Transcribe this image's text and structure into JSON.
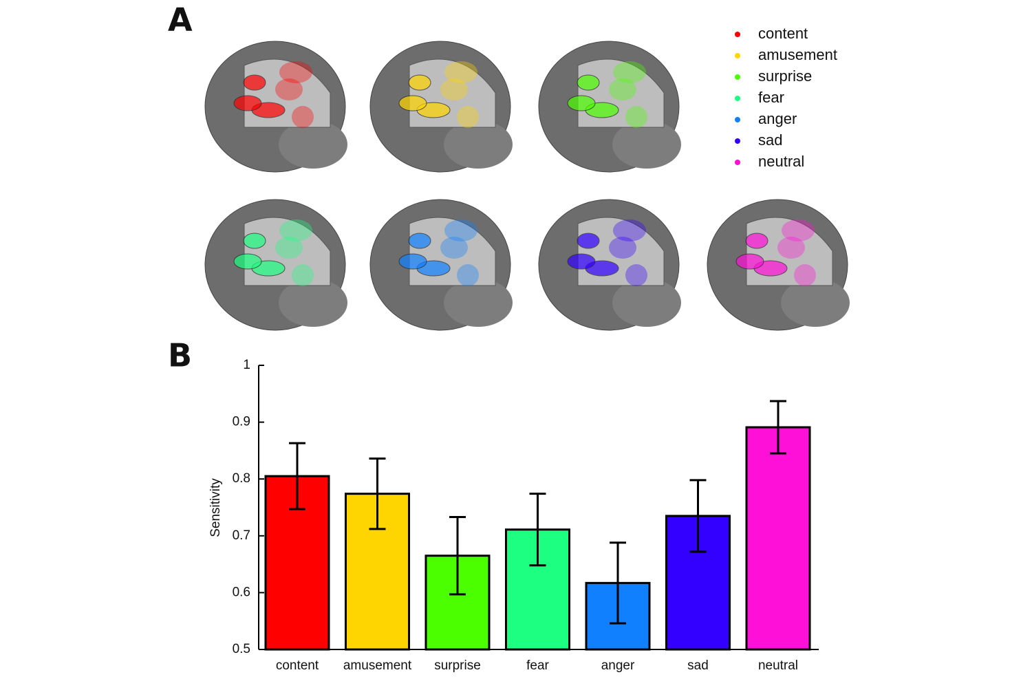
{
  "panel_labels": [
    "A",
    "B"
  ],
  "legend": {
    "entries": [
      {
        "name": "content",
        "color": "#ff0000"
      },
      {
        "name": "amusement",
        "color": "#ffd500"
      },
      {
        "name": "surprise",
        "color": "#4cff00"
      },
      {
        "name": "fear",
        "color": "#1dff80"
      },
      {
        "name": "anger",
        "color": "#1080ff"
      },
      {
        "name": "sad",
        "color": "#3300ff"
      },
      {
        "name": "neutral",
        "color": "#ff10d8"
      }
    ]
  },
  "chart_data": {
    "type": "bar",
    "ylabel": "Sensitivity",
    "categories": [
      "content",
      "amusement",
      "surprise",
      "fear",
      "anger",
      "sad",
      "neutral"
    ],
    "values": [
      0.805,
      0.774,
      0.665,
      0.711,
      0.617,
      0.735,
      0.891
    ],
    "errors": [
      0.058,
      0.062,
      0.068,
      0.063,
      0.071,
      0.063,
      0.046
    ],
    "colors": [
      "#ff0000",
      "#ffd500",
      "#4cff00",
      "#1dff80",
      "#1080ff",
      "#3300ff",
      "#ff10d8"
    ],
    "ylim": [
      0.5,
      1
    ],
    "yticks": [
      0.5,
      0.6,
      0.7,
      0.8,
      0.9,
      1
    ]
  }
}
